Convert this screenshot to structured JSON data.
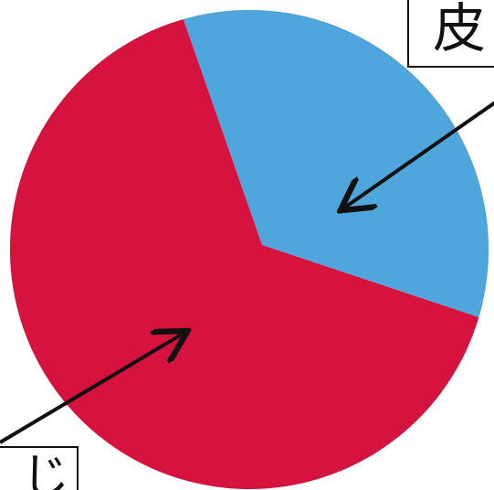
{
  "chart_data": {
    "type": "pie",
    "slices": [
      {
        "label": "皮",
        "value": 0.34,
        "color": "#4ea6dd"
      },
      {
        "label": "じ",
        "value": 0.66,
        "color": "#d6123f"
      }
    ]
  },
  "labels": {
    "top": "皮",
    "bottom": "じ"
  },
  "colors": {
    "blue_slice": "#4ea6dd",
    "red_slice": "#d6123f",
    "arrow": "#111111",
    "background": "#ffffff"
  }
}
